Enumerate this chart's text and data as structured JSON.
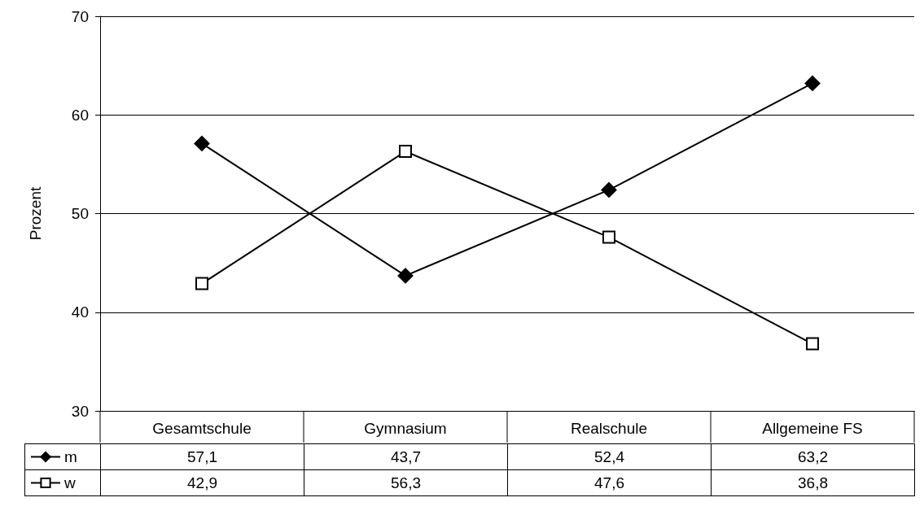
{
  "chart_data": {
    "type": "line",
    "ylabel": "Prozent",
    "categories": [
      "Gesamtschule",
      "Gymnasium",
      "Realschule",
      "Allgemeine FS"
    ],
    "series": [
      {
        "name": "m",
        "color": "#000000",
        "marker": "diamond",
        "values": [
          57.1,
          43.7,
          52.4,
          63.2
        ],
        "value_labels": [
          "57,1",
          "43,7",
          "52,4",
          "63,2"
        ]
      },
      {
        "name": "w",
        "color": "#000000",
        "marker": "square",
        "values": [
          42.9,
          56.3,
          47.6,
          36.8
        ],
        "value_labels": [
          "42,9",
          "56,3",
          "47,6",
          "36,8"
        ]
      }
    ],
    "ylim": [
      30,
      70
    ],
    "yticks": [
      30,
      40,
      50,
      60,
      70
    ],
    "grid": "y",
    "legend": "bottom left",
    "line_style": "solid"
  }
}
